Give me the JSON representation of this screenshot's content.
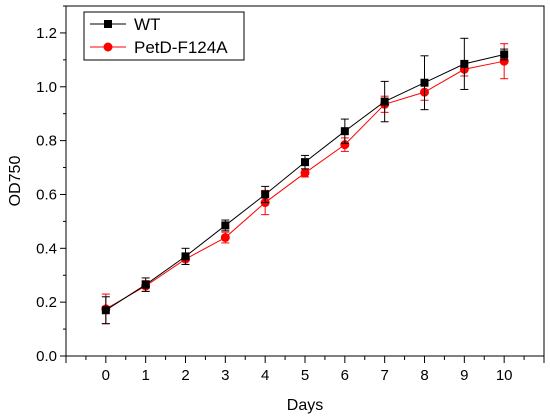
{
  "chart_data": {
    "type": "line",
    "title": "",
    "xlabel": "Days",
    "ylabel": "OD750",
    "xlim": [
      -1,
      11
    ],
    "ylim": [
      0.0,
      1.3
    ],
    "x_ticks": [
      "0",
      "1",
      "2",
      "3",
      "4",
      "5",
      "6",
      "7",
      "8",
      "9",
      "10"
    ],
    "y_ticks": [
      "0.0",
      "0.2",
      "0.4",
      "0.6",
      "0.8",
      "1.0",
      "1.2"
    ],
    "grid": false,
    "legend_position": "top-left",
    "series": [
      {
        "name": "WT",
        "color": "#000000",
        "marker": "square",
        "x": [
          0,
          1,
          2,
          3,
          4,
          5,
          6,
          7,
          8,
          9,
          10
        ],
        "values": [
          0.17,
          0.265,
          0.37,
          0.485,
          0.6,
          0.72,
          0.835,
          0.945,
          1.015,
          1.085,
          1.12
        ],
        "error": [
          0.05,
          0.025,
          0.03,
          0.02,
          0.03,
          0.025,
          0.045,
          0.075,
          0.1,
          0.095,
          0.02
        ]
      },
      {
        "name": "PetD-F124A",
        "color": "#ff0000",
        "marker": "circle",
        "x": [
          0,
          1,
          2,
          3,
          4,
          5,
          6,
          7,
          8,
          9,
          10
        ],
        "values": [
          0.175,
          0.26,
          0.36,
          0.44,
          0.57,
          0.68,
          0.785,
          0.935,
          0.98,
          1.065,
          1.095
        ],
        "error": [
          0.055,
          0.02,
          0.02,
          0.02,
          0.045,
          0.015,
          0.025,
          0.03,
          0.03,
          0.025,
          0.065
        ]
      }
    ]
  }
}
